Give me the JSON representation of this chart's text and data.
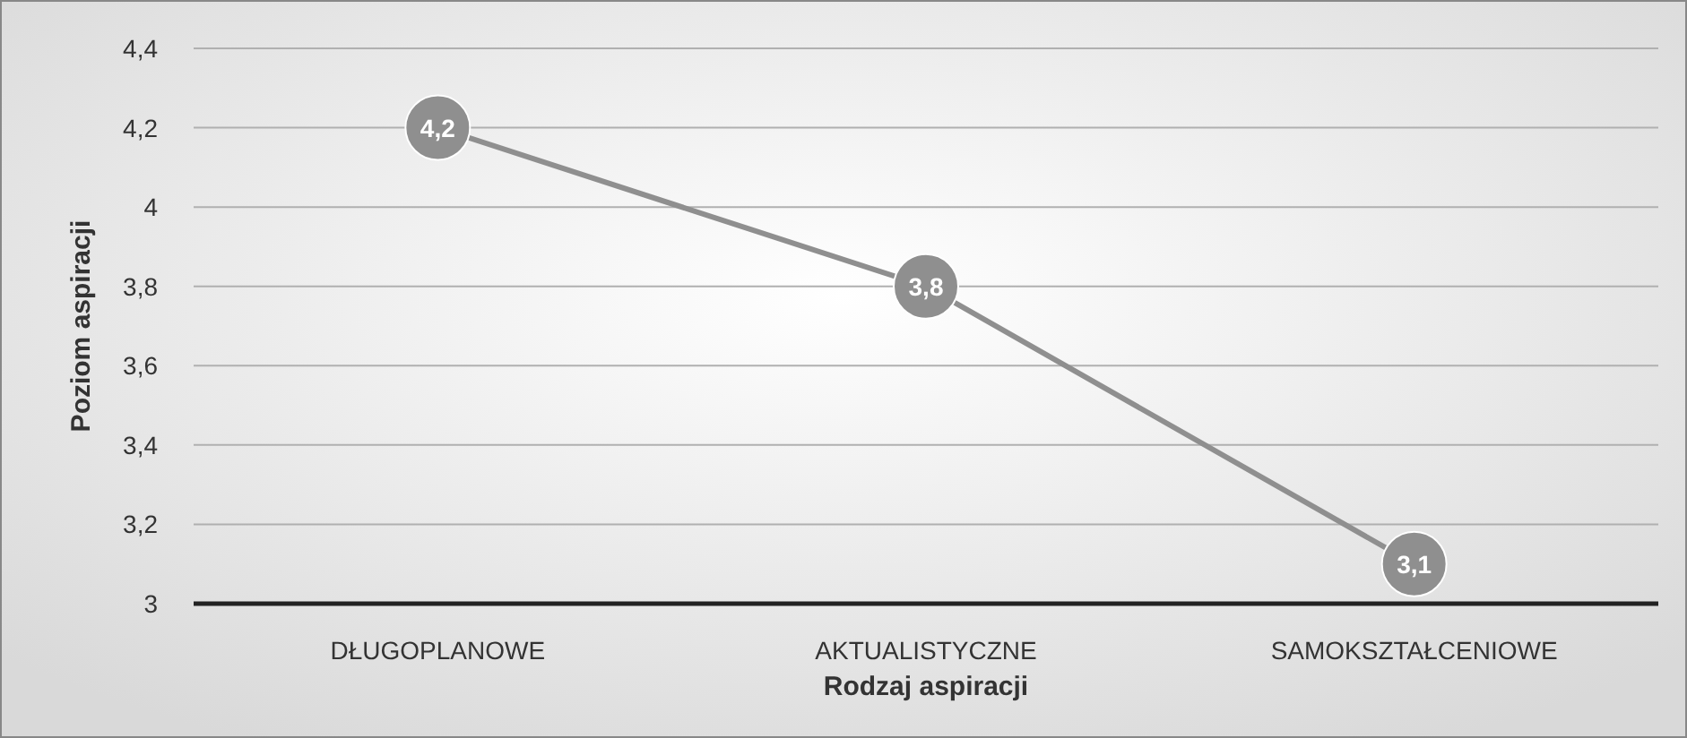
{
  "chart_data": {
    "type": "line",
    "xlabel": "Rodzaj aspiracji",
    "ylabel": "Poziom aspiracji",
    "categories": [
      "DŁUGOPLANOWE",
      "AKTUALISTYCZNE",
      "SAMOKSZTAŁCENIOWE"
    ],
    "series": [
      {
        "color": "#8f8f8f",
        "values": [
          4.2,
          3.8,
          3.1
        ],
        "value_labels": [
          "4,2",
          "3,8",
          "3,1"
        ]
      }
    ],
    "ylim": [
      3,
      4.4
    ],
    "yticks": [
      3,
      {
        "value": 3.2,
        "label": "3,2"
      },
      {
        "value": 3.4,
        "label": "3,4"
      },
      {
        "value": 3.6,
        "label": "3,6"
      },
      {
        "value": 3.8,
        "label": "3,8"
      },
      4,
      {
        "value": 4.2,
        "label": "4,2"
      },
      {
        "value": 4.4,
        "label": "4,4"
      }
    ],
    "grid": "y",
    "marker": "circle",
    "line_style": "solid"
  }
}
